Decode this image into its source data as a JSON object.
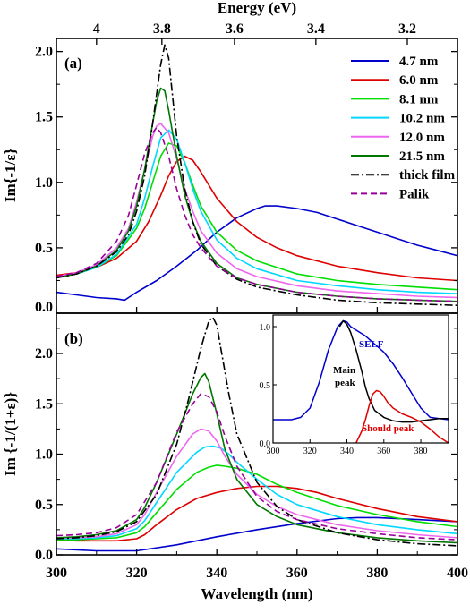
{
  "chart_data": [
    {
      "panel": "(a)",
      "type": "line",
      "xlabel": "",
      "top_xlabel": "Energy (eV)",
      "ylabel": "Im{-1/ε}",
      "xlim": [
        300,
        400
      ],
      "ylim": [
        0,
        2.1
      ],
      "xticks": [
        "300",
        "320",
        "340",
        "360",
        "380",
        "400"
      ],
      "top_ticks": [
        {
          "label": "4",
          "wavelength_nm": 310.0
        },
        {
          "label": "3.8",
          "wavelength_nm": 326.3
        },
        {
          "label": "3.6",
          "wavelength_nm": 344.4
        },
        {
          "label": "3.4",
          "wavelength_nm": 364.7
        },
        {
          "label": "3.2",
          "wavelength_nm": 387.5
        }
      ],
      "yticks": [
        "0.0",
        "0.5",
        "1.0",
        "1.5",
        "2.0"
      ],
      "legend_position": "top-right",
      "series": [
        {
          "name": "4.7 nm",
          "color": "#0000cc",
          "dash": "solid",
          "x": [
            300,
            305,
            310,
            315,
            317,
            318,
            320,
            325,
            330,
            335,
            340,
            345,
            350,
            352,
            355,
            360,
            365,
            370,
            375,
            380,
            385,
            390,
            395,
            400
          ],
          "y": [
            0.16,
            0.14,
            0.12,
            0.11,
            0.1,
            0.12,
            0.16,
            0.25,
            0.36,
            0.48,
            0.62,
            0.73,
            0.8,
            0.82,
            0.82,
            0.8,
            0.77,
            0.72,
            0.67,
            0.62,
            0.57,
            0.52,
            0.48,
            0.44
          ]
        },
        {
          "name": "6.0 nm",
          "color": "#dd0000",
          "dash": "solid",
          "x": [
            300,
            305,
            310,
            315,
            320,
            323,
            326,
            328,
            330,
            332,
            334,
            336,
            340,
            345,
            350,
            355,
            360,
            370,
            380,
            390,
            400
          ],
          "y": [
            0.29,
            0.31,
            0.35,
            0.42,
            0.55,
            0.7,
            0.9,
            1.05,
            1.16,
            1.2,
            1.17,
            1.08,
            0.88,
            0.7,
            0.58,
            0.5,
            0.44,
            0.36,
            0.31,
            0.27,
            0.25
          ]
        },
        {
          "name": "8.1 nm",
          "color": "#00dd00",
          "dash": "solid",
          "x": [
            300,
            305,
            310,
            315,
            320,
            322,
            324,
            326,
            328,
            330,
            332,
            334,
            336,
            340,
            345,
            350,
            360,
            370,
            380,
            390,
            400
          ],
          "y": [
            0.28,
            0.3,
            0.35,
            0.44,
            0.65,
            0.8,
            1.0,
            1.2,
            1.3,
            1.28,
            1.15,
            0.98,
            0.82,
            0.62,
            0.48,
            0.4,
            0.3,
            0.25,
            0.22,
            0.2,
            0.18
          ]
        },
        {
          "name": "10.2 nm",
          "color": "#00d8ff",
          "dash": "solid",
          "x": [
            300,
            305,
            310,
            315,
            320,
            322,
            324,
            326,
            328,
            330,
            332,
            334,
            336,
            340,
            345,
            350,
            360,
            370,
            380,
            390,
            400
          ],
          "y": [
            0.28,
            0.3,
            0.35,
            0.45,
            0.68,
            0.88,
            1.12,
            1.34,
            1.4,
            1.33,
            1.15,
            0.95,
            0.78,
            0.56,
            0.42,
            0.34,
            0.25,
            0.21,
            0.18,
            0.16,
            0.15
          ]
        },
        {
          "name": "12.0 nm",
          "color": "#ee66ee",
          "dash": "solid",
          "x": [
            300,
            305,
            310,
            315,
            318,
            320,
            322,
            324,
            325,
            326,
            328,
            330,
            332,
            334,
            336,
            340,
            345,
            350,
            360,
            370,
            380,
            390,
            400
          ],
          "y": [
            0.28,
            0.31,
            0.37,
            0.5,
            0.65,
            0.85,
            1.1,
            1.35,
            1.43,
            1.45,
            1.38,
            1.18,
            0.95,
            0.78,
            0.63,
            0.46,
            0.34,
            0.28,
            0.21,
            0.17,
            0.15,
            0.13,
            0.12
          ]
        },
        {
          "name": "21.5 nm",
          "color": "#007700",
          "dash": "solid",
          "x": [
            300,
            305,
            310,
            315,
            318,
            320,
            322,
            324,
            325,
            326,
            327,
            328,
            330,
            332,
            334,
            336,
            340,
            345,
            350,
            360,
            370,
            380,
            390,
            400
          ],
          "y": [
            0.27,
            0.3,
            0.36,
            0.48,
            0.63,
            0.82,
            1.1,
            1.45,
            1.62,
            1.72,
            1.7,
            1.55,
            1.2,
            0.9,
            0.7,
            0.55,
            0.38,
            0.27,
            0.22,
            0.16,
            0.13,
            0.11,
            0.1,
            0.09
          ]
        },
        {
          "name": "thick film",
          "color": "#000000",
          "dash": "dashdot",
          "x": [
            300,
            305,
            310,
            315,
            318,
            320,
            322,
            324,
            326,
            327,
            328,
            329,
            330,
            332,
            334,
            336,
            340,
            345,
            350,
            360,
            370,
            380,
            390,
            400
          ],
          "y": [
            0.27,
            0.3,
            0.36,
            0.47,
            0.6,
            0.78,
            1.05,
            1.45,
            1.9,
            2.05,
            1.95,
            1.65,
            1.35,
            0.95,
            0.7,
            0.53,
            0.36,
            0.26,
            0.2,
            0.14,
            0.1,
            0.08,
            0.07,
            0.06
          ]
        },
        {
          "name": "Palik",
          "color": "#990099",
          "dash": "dashed",
          "x": [
            300,
            305,
            310,
            315,
            318,
            320,
            322,
            324,
            325,
            326,
            328,
            330,
            332,
            334,
            336,
            340,
            345,
            350,
            360,
            370,
            380,
            390,
            400
          ],
          "y": [
            0.28,
            0.31,
            0.38,
            0.55,
            0.75,
            0.98,
            1.22,
            1.38,
            1.42,
            1.38,
            1.2,
            0.95,
            0.75,
            0.6,
            0.5,
            0.36,
            0.27,
            0.22,
            0.16,
            0.13,
            0.11,
            0.1,
            0.09
          ]
        }
      ]
    },
    {
      "panel": "(b)",
      "type": "line",
      "xlabel": "Wavelength (nm)",
      "ylabel": "Im {-1/(1+ε)}",
      "xlim": [
        300,
        400
      ],
      "ylim": [
        0,
        2.4
      ],
      "xticks": [
        "300",
        "320",
        "340",
        "360",
        "380",
        "400"
      ],
      "yticks": [
        "0.0",
        "0.5",
        "1.0",
        "1.5",
        "2.0"
      ],
      "series": [
        {
          "name": "4.7 nm",
          "color": "#0000cc",
          "dash": "solid",
          "x": [
            300,
            310,
            320,
            330,
            340,
            350,
            360,
            370,
            375,
            380,
            390,
            400
          ],
          "y": [
            0.06,
            0.04,
            0.04,
            0.1,
            0.18,
            0.25,
            0.31,
            0.36,
            0.37,
            0.37,
            0.35,
            0.33
          ]
        },
        {
          "name": "6.0 nm",
          "color": "#dd0000",
          "dash": "solid",
          "x": [
            300,
            305,
            310,
            315,
            320,
            322,
            325,
            330,
            335,
            340,
            345,
            350,
            355,
            360,
            365,
            370,
            380,
            390,
            400
          ],
          "y": [
            0.15,
            0.14,
            0.14,
            0.14,
            0.16,
            0.2,
            0.3,
            0.45,
            0.56,
            0.62,
            0.66,
            0.68,
            0.68,
            0.66,
            0.62,
            0.56,
            0.46,
            0.38,
            0.33
          ]
        },
        {
          "name": "8.1 nm",
          "color": "#00dd00",
          "dash": "solid",
          "x": [
            300,
            305,
            310,
            315,
            320,
            322,
            325,
            330,
            335,
            338,
            340,
            342,
            345,
            350,
            355,
            360,
            370,
            380,
            390,
            400
          ],
          "y": [
            0.15,
            0.15,
            0.16,
            0.17,
            0.22,
            0.28,
            0.42,
            0.65,
            0.82,
            0.87,
            0.89,
            0.88,
            0.86,
            0.8,
            0.7,
            0.62,
            0.49,
            0.4,
            0.33,
            0.28
          ]
        },
        {
          "name": "10.2 nm",
          "color": "#00d8ff",
          "dash": "solid",
          "x": [
            300,
            305,
            310,
            315,
            320,
            322,
            325,
            330,
            335,
            337,
            339,
            341,
            343,
            345,
            350,
            355,
            360,
            370,
            380,
            390,
            400
          ],
          "y": [
            0.16,
            0.16,
            0.17,
            0.19,
            0.26,
            0.34,
            0.52,
            0.82,
            1.02,
            1.07,
            1.08,
            1.06,
            1.0,
            0.92,
            0.75,
            0.6,
            0.5,
            0.38,
            0.3,
            0.25,
            0.21
          ]
        },
        {
          "name": "12.0 nm",
          "color": "#ee66ee",
          "dash": "solid",
          "x": [
            300,
            305,
            310,
            315,
            320,
            322,
            325,
            330,
            334,
            336,
            338,
            340,
            342,
            345,
            350,
            355,
            360,
            370,
            380,
            390,
            400
          ],
          "y": [
            0.17,
            0.17,
            0.18,
            0.21,
            0.3,
            0.4,
            0.62,
            0.98,
            1.2,
            1.25,
            1.23,
            1.13,
            0.98,
            0.8,
            0.6,
            0.48,
            0.4,
            0.3,
            0.24,
            0.2,
            0.17
          ]
        },
        {
          "name": "21.5 nm",
          "color": "#007700",
          "dash": "solid",
          "x": [
            300,
            305,
            310,
            315,
            320,
            322,
            325,
            330,
            334,
            336,
            337,
            338,
            340,
            342,
            345,
            350,
            355,
            360,
            370,
            380,
            390,
            400
          ],
          "y": [
            0.17,
            0.18,
            0.2,
            0.24,
            0.35,
            0.47,
            0.72,
            1.2,
            1.6,
            1.76,
            1.8,
            1.72,
            1.4,
            1.05,
            0.75,
            0.5,
            0.38,
            0.3,
            0.22,
            0.17,
            0.14,
            0.12
          ]
        },
        {
          "name": "thick film",
          "color": "#000000",
          "dash": "dashdot",
          "x": [
            300,
            305,
            310,
            315,
            320,
            325,
            330,
            333,
            336,
            338,
            339,
            340,
            341,
            343,
            345,
            350,
            355,
            360,
            370,
            380,
            390,
            400
          ],
          "y": [
            0.16,
            0.17,
            0.19,
            0.23,
            0.33,
            0.6,
            1.1,
            1.55,
            2.05,
            2.32,
            2.36,
            2.28,
            2.05,
            1.6,
            1.2,
            0.72,
            0.48,
            0.35,
            0.22,
            0.15,
            0.11,
            0.09
          ]
        },
        {
          "name": "Palik",
          "color": "#990099",
          "dash": "dashed",
          "x": [
            300,
            305,
            310,
            315,
            320,
            325,
            330,
            334,
            336,
            338,
            340,
            342,
            345,
            350,
            355,
            360,
            370,
            380,
            390,
            400
          ],
          "y": [
            0.19,
            0.2,
            0.22,
            0.27,
            0.4,
            0.72,
            1.22,
            1.5,
            1.6,
            1.57,
            1.42,
            1.18,
            0.88,
            0.58,
            0.43,
            0.35,
            0.26,
            0.21,
            0.17,
            0.15
          ]
        }
      ],
      "inset": {
        "xlim": [
          300,
          395
        ],
        "ylim": [
          0,
          1.1
        ],
        "xticks": [
          "300",
          "320",
          "340",
          "360",
          "380"
        ],
        "yticks": [
          "0.0",
          "0.5",
          "1.0"
        ],
        "annotations": [
          {
            "text": "SELF",
            "color": "#0000cc"
          },
          {
            "text": "Main",
            "color": "#000000"
          },
          {
            "text": "peak",
            "color": "#000000"
          },
          {
            "text": "Should peak",
            "color": "#dd0000"
          }
        ],
        "series": [
          {
            "name": "",
            "color": "#0000cc",
            "dash": "solid",
            "x": [
              300,
              305,
              310,
              315,
              320,
              325,
              330,
              335,
              338,
              340,
              342,
              345,
              350,
              355,
              360,
              365,
              370,
              375,
              380,
              385,
              390,
              395
            ],
            "y": [
              0.2,
              0.2,
              0.2,
              0.22,
              0.3,
              0.52,
              0.8,
              1.0,
              1.05,
              1.04,
              1.0,
              0.97,
              0.92,
              0.85,
              0.78,
              0.68,
              0.56,
              0.43,
              0.3,
              0.22,
              0.21,
              0.2
            ]
          },
          {
            "name": "",
            "color": "#000000",
            "dash": "solid",
            "x": [
              336,
              338,
              340,
              342,
              345,
              348,
              350,
              352,
              355,
              360,
              365,
              370,
              375,
              380,
              385,
              390,
              395
            ],
            "y": [
              1.0,
              1.05,
              1.02,
              0.95,
              0.8,
              0.62,
              0.48,
              0.38,
              0.28,
              0.22,
              0.19,
              0.18,
              0.18,
              0.19,
              0.2,
              0.21,
              0.21
            ]
          },
          {
            "name": "",
            "color": "#dd0000",
            "dash": "solid",
            "x": [
              345,
              348,
              350,
              352,
              354,
              356,
              358,
              360,
              362,
              365,
              370,
              375,
              380,
              385,
              390,
              395
            ],
            "y": [
              0.0,
              0.1,
              0.2,
              0.32,
              0.42,
              0.45,
              0.44,
              0.4,
              0.35,
              0.3,
              0.25,
              0.22,
              0.18,
              0.12,
              0.05,
              0.0
            ]
          }
        ]
      }
    }
  ]
}
